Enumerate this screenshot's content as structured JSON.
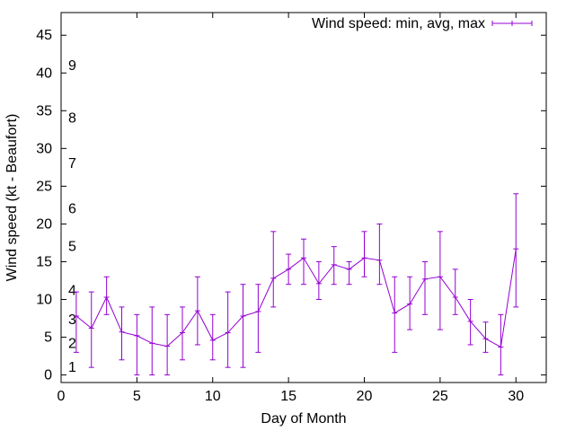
{
  "chart_data": {
    "type": "line",
    "title": "",
    "xlabel": "Day of Month",
    "ylabel": "Wind speed (kt - Beaufort)",
    "xlim": [
      0,
      32
    ],
    "ylim": [
      -1,
      48
    ],
    "xticks": [
      0,
      5,
      10,
      15,
      20,
      25,
      30
    ],
    "yticks": [
      0,
      5,
      10,
      15,
      20,
      25,
      30,
      35,
      40,
      45
    ],
    "grid": false,
    "legend_position": "top-right",
    "beaufort_labels": [
      {
        "text": "1",
        "y": 1
      },
      {
        "text": "2",
        "y": 4.2
      },
      {
        "text": "3",
        "y": 7.3
      },
      {
        "text": "4",
        "y": 11.2
      },
      {
        "text": "5",
        "y": 17
      },
      {
        "text": "6",
        "y": 22
      },
      {
        "text": "7",
        "y": 28
      },
      {
        "text": "8",
        "y": 34
      },
      {
        "text": "9",
        "y": 41
      }
    ],
    "series": [
      {
        "name": "Wind speed: min, avg, max",
        "color": "#9400d3",
        "x": [
          1,
          2,
          3,
          4,
          5,
          6,
          7,
          8,
          9,
          10,
          11,
          12,
          13,
          14,
          15,
          16,
          17,
          18,
          19,
          20,
          21,
          22,
          23,
          24,
          25,
          26,
          27,
          28,
          29,
          30
        ],
        "avg": [
          7.8,
          6.2,
          10.3,
          5.7,
          5.2,
          4.2,
          3.8,
          5.6,
          8.5,
          4.6,
          5.6,
          7.8,
          8.4,
          12.8,
          14,
          15.5,
          12.1,
          14.6,
          14,
          15.5,
          15.2,
          8.2,
          9.4,
          12.7,
          13,
          10.3,
          7.1,
          4.8,
          3.7,
          16.7
        ],
        "min": [
          3,
          1,
          8,
          2,
          0,
          0,
          0,
          2,
          4,
          2,
          1,
          1,
          3,
          9,
          12,
          12,
          10,
          12,
          12,
          13,
          12,
          3,
          6,
          8,
          6,
          8,
          4,
          3,
          0,
          9
        ],
        "max": [
          11,
          11,
          13,
          9,
          8,
          9,
          8,
          9,
          13,
          8,
          11,
          12,
          12,
          19,
          16,
          18,
          15,
          17,
          15,
          19,
          20,
          13,
          13,
          15,
          19,
          14,
          10,
          7,
          8,
          24
        ]
      }
    ]
  }
}
